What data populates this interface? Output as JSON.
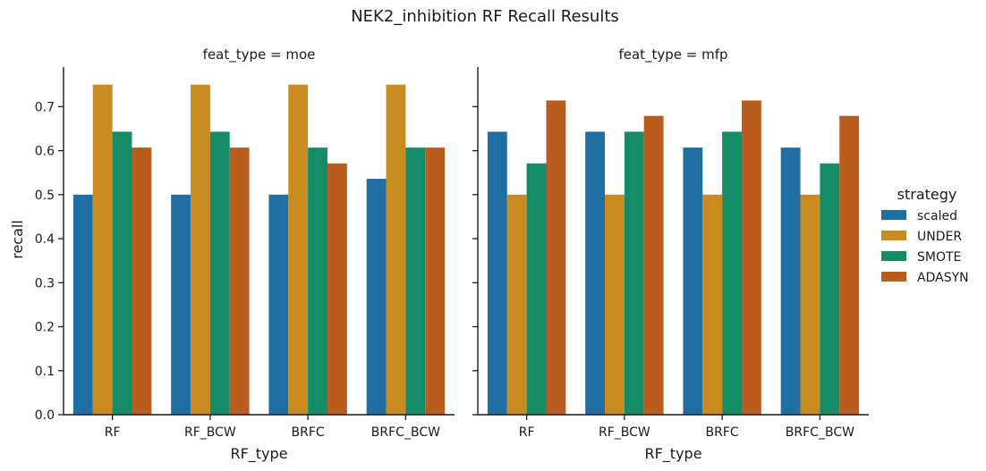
{
  "chart_data": {
    "type": "bar",
    "title": "NEK2_inhibition RF Recall Results",
    "xlabel": "RF_type",
    "ylabel": "recall",
    "ylim": [
      0,
      0.79
    ],
    "yticks": [
      "0.0",
      "0.1",
      "0.2",
      "0.3",
      "0.4",
      "0.5",
      "0.6",
      "0.7"
    ],
    "grid": false,
    "legend": {
      "title": "strategy",
      "placement": "right",
      "entries": [
        "scaled",
        "UNDER",
        "SMOTE",
        "ADASYN"
      ]
    },
    "colors": [
      "#1f6fa5",
      "#c98a1f",
      "#148c68",
      "#b95c1d"
    ],
    "categories": [
      "RF",
      "RF_BCW",
      "BRFC",
      "BRFC_BCW"
    ],
    "panels": [
      {
        "title": "feat_type = moe",
        "series": [
          {
            "name": "scaled",
            "values": [
              0.5,
              0.5,
              0.5,
              0.536
            ]
          },
          {
            "name": "UNDER",
            "values": [
              0.75,
              0.75,
              0.75,
              0.75
            ]
          },
          {
            "name": "SMOTE",
            "values": [
              0.643,
              0.643,
              0.607,
              0.607
            ]
          },
          {
            "name": "ADASYN",
            "values": [
              0.607,
              0.607,
              0.571,
              0.607
            ]
          }
        ]
      },
      {
        "title": "feat_type = mfp",
        "series": [
          {
            "name": "scaled",
            "values": [
              0.643,
              0.643,
              0.607,
              0.607
            ]
          },
          {
            "name": "UNDER",
            "values": [
              0.5,
              0.5,
              0.5,
              0.5
            ]
          },
          {
            "name": "SMOTE",
            "values": [
              0.571,
              0.643,
              0.643,
              0.571
            ]
          },
          {
            "name": "ADASYN",
            "values": [
              0.714,
              0.679,
              0.714,
              0.679
            ]
          }
        ]
      }
    ]
  }
}
